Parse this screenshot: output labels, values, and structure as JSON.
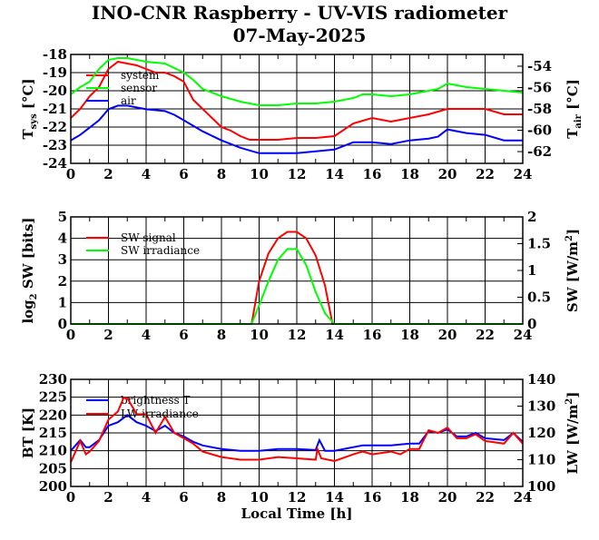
{
  "title": "INO-CNR Raspberry - UV-VIS radiometer",
  "subtitle": "07-May-2025",
  "xlabel": "Local Time [h]",
  "colors": {
    "red": "#ff0000",
    "green": "#00ff00",
    "blue": "#0000ff"
  },
  "chart_data": [
    {
      "type": "line",
      "x_ticks": [
        "0",
        "2",
        "4",
        "6",
        "8",
        "10",
        "12",
        "14",
        "16",
        "18",
        "20",
        "22",
        "24"
      ],
      "xlim": [
        0,
        24
      ],
      "ylabel_left": "T",
      "ylabel_left_sub": "sys",
      "ylabel_left_unit": "[°C]",
      "ylabel_right": "T",
      "ylabel_right_sub": "air",
      "ylabel_right_unit": "[°C]",
      "ylim_left": [
        -24,
        -18
      ],
      "ylim_right": [
        -63.1,
        -52.9
      ],
      "y_ticks_left": [
        "-18",
        "-19",
        "-20",
        "-21",
        "-22",
        "-23",
        "-24"
      ],
      "y_ticks_right": [
        "-54",
        "-56",
        "-58",
        "-60",
        "-62"
      ],
      "series": [
        {
          "name": "system",
          "color": "#ff0000",
          "axis": "left",
          "x": [
            0,
            0.5,
            1,
            1.5,
            2,
            2.5,
            3,
            3.5,
            4,
            4.5,
            5,
            5.5,
            6,
            6.5,
            7,
            7.5,
            8,
            8.5,
            9,
            9.5,
            10,
            11,
            12,
            13,
            14,
            15,
            16,
            17,
            18,
            19,
            20,
            21,
            22,
            23,
            24
          ],
          "y": [
            -21.5,
            -21,
            -20.3,
            -19.8,
            -18.8,
            -18.4,
            -18.5,
            -18.6,
            -18.8,
            -19,
            -19,
            -19.2,
            -19.5,
            -20.5,
            -21,
            -21.5,
            -22,
            -22.2,
            -22.5,
            -22.7,
            -22.7,
            -22.7,
            -22.6,
            -22.6,
            -22.5,
            -21.8,
            -21.5,
            -21.7,
            -21.5,
            -21.3,
            -21,
            -21,
            -21,
            -21.3,
            -21.3
          ]
        },
        {
          "name": "sensor",
          "color": "#00ff00",
          "axis": "left",
          "x": [
            0,
            0.5,
            1,
            1.5,
            2,
            2.5,
            3,
            3.5,
            4,
            5,
            6,
            6.5,
            7,
            8,
            9,
            10,
            11,
            12,
            13,
            14,
            15,
            15.5,
            16,
            17,
            18,
            19,
            19.5,
            20,
            20.5,
            21,
            22,
            23,
            24
          ],
          "y": [
            -20.2,
            -19.8,
            -19.5,
            -18.8,
            -18.3,
            -18.2,
            -18.2,
            -18.3,
            -18.4,
            -18.5,
            -19,
            -19.4,
            -19.9,
            -20.3,
            -20.6,
            -20.8,
            -20.8,
            -20.7,
            -20.7,
            -20.6,
            -20.4,
            -20.2,
            -20.2,
            -20.3,
            -20.2,
            -20,
            -19.9,
            -19.6,
            -19.7,
            -19.8,
            -19.9,
            -20,
            -20.1
          ]
        },
        {
          "name": "air",
          "color": "#0000ff",
          "axis": "right",
          "x": [
            0,
            0.5,
            1,
            1.5,
            2,
            2.5,
            3,
            3.5,
            4,
            5,
            5.5,
            6,
            6.5,
            7,
            8,
            9,
            10,
            11,
            12,
            13,
            14,
            15,
            16,
            17,
            18,
            19,
            19.5,
            20,
            21,
            22,
            23,
            24
          ],
          "y": [
            -60.95,
            -60.43,
            -59.75,
            -59.06,
            -58.03,
            -57.69,
            -57.69,
            -57.86,
            -58.03,
            -58.2,
            -58.55,
            -59.06,
            -59.58,
            -60.1,
            -60.95,
            -61.64,
            -62.15,
            -62.15,
            -62.15,
            -61.98,
            -61.81,
            -61.12,
            -61.12,
            -61.29,
            -60.95,
            -60.78,
            -60.6,
            -59.92,
            -60.26,
            -60.43,
            -60.95,
            -60.95
          ]
        }
      ]
    },
    {
      "type": "line",
      "x_ticks": [
        "0",
        "2",
        "4",
        "6",
        "8",
        "10",
        "12",
        "14",
        "16",
        "18",
        "20",
        "22",
        "24"
      ],
      "xlim": [
        0,
        24
      ],
      "ylabel_left": "log",
      "ylabel_left_sub": "2",
      "ylabel_left_unit": "SW [bits]",
      "ylabel_right": "SW [W/m",
      "ylabel_right_sup": "2",
      "ylabel_right_unit": "]",
      "ylim_left": [
        0,
        5
      ],
      "ylim_right": [
        0,
        2
      ],
      "y_ticks_left": [
        "0",
        "1",
        "2",
        "3",
        "4",
        "5"
      ],
      "y_ticks_right": [
        "0",
        "0.5",
        "1",
        "1.5",
        "2"
      ],
      "series": [
        {
          "name": "SW signal",
          "color": "#ff0000",
          "axis": "left",
          "x": [
            0,
            9.6,
            10,
            10.5,
            11,
            11.5,
            12,
            12.5,
            13,
            13.5,
            13.9,
            24
          ],
          "y": [
            0,
            0,
            2,
            3.3,
            4,
            4.3,
            4.3,
            4,
            3.2,
            1.8,
            0,
            0
          ]
        },
        {
          "name": "SW irradiance",
          "color": "#00ff00",
          "axis": "right",
          "x": [
            0,
            9.6,
            10,
            10.5,
            11,
            11.5,
            12,
            12.5,
            13,
            13.5,
            14,
            24
          ],
          "y": [
            0,
            0,
            0.35,
            0.8,
            1.2,
            1.4,
            1.4,
            1.1,
            0.6,
            0.2,
            0,
            0
          ]
        }
      ]
    },
    {
      "type": "line",
      "x_ticks": [
        "0",
        "2",
        "4",
        "6",
        "8",
        "10",
        "12",
        "14",
        "16",
        "18",
        "20",
        "22",
        "24"
      ],
      "xlim": [
        0,
        24
      ],
      "ylabel_left": "BT [K]",
      "ylabel_right": "LW [W/m",
      "ylabel_right_sup": "2",
      "ylabel_right_unit": "]",
      "ylim_left": [
        200,
        230
      ],
      "ylim_right": [
        100,
        140
      ],
      "y_ticks_left": [
        "200",
        "205",
        "210",
        "215",
        "220",
        "225",
        "230"
      ],
      "y_ticks_right": [
        "100",
        "110",
        "120",
        "130",
        "140"
      ],
      "series": [
        {
          "name": "brightness T",
          "color": "#0000ff",
          "axis": "left",
          "x": [
            0,
            0.5,
            0.8,
            1,
            1.5,
            2,
            2.5,
            3,
            3.5,
            4,
            4.5,
            5,
            5.5,
            6,
            6.5,
            7,
            8,
            9,
            10,
            11,
            12,
            13,
            13.2,
            13.5,
            14,
            15,
            15.5,
            16,
            17,
            18,
            18.5,
            19,
            19.5,
            20,
            20.5,
            21,
            21.5,
            22,
            23,
            23.5,
            24
          ],
          "y": [
            210,
            213,
            211,
            211,
            213,
            217,
            218,
            220,
            218,
            217,
            215.5,
            217,
            215,
            214,
            212.5,
            211.5,
            210.5,
            210,
            210,
            210.5,
            210.5,
            210.2,
            213,
            210,
            210,
            211,
            211.5,
            211.5,
            211.5,
            212,
            212,
            215.5,
            215,
            216,
            214,
            214,
            215,
            213.5,
            213,
            215,
            212.5
          ]
        },
        {
          "name": "LW irradiance",
          "color": "#ff0000",
          "axis": "right",
          "x": [
            0,
            0.5,
            0.8,
            1,
            1.5,
            2,
            2.5,
            2.8,
            3,
            3.5,
            4,
            4.5,
            5,
            5.5,
            6,
            6.5,
            7,
            8,
            9,
            10,
            11,
            12,
            13,
            13.1,
            13.3,
            14,
            15,
            15.5,
            16,
            17,
            17.5,
            18,
            18.5,
            19,
            19.5,
            20,
            20.5,
            21,
            21.5,
            22,
            23,
            23.5,
            24
          ],
          "y": [
            109,
            117,
            112,
            113,
            117,
            125,
            128,
            133,
            133,
            127,
            127,
            120,
            126,
            120,
            118,
            116,
            113,
            111,
            110,
            110,
            111,
            110.5,
            110,
            114,
            110.5,
            109.5,
            112,
            113,
            112,
            113,
            112,
            114,
            114,
            121,
            120,
            122,
            118,
            118,
            119.5,
            117,
            116,
            120,
            116
          ]
        }
      ]
    }
  ]
}
